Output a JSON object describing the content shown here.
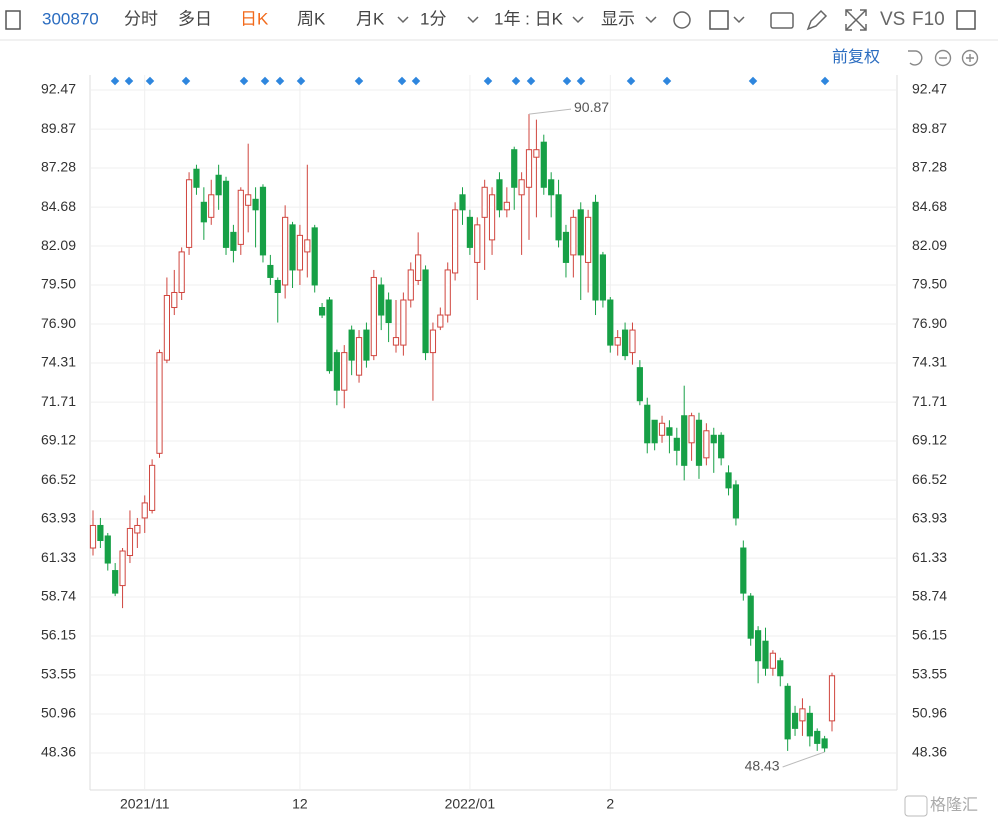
{
  "toolbar": {
    "code": "300870",
    "tabs": [
      "分时",
      "多日",
      "日K",
      "周K",
      "月K",
      "1分",
      "1年 : 日K",
      "显示"
    ],
    "active_tab": "日K",
    "tools": [
      "VS",
      "F10"
    ],
    "adjust": "前复权"
  },
  "watermark": "格隆汇",
  "chart_data": {
    "type": "candlestick",
    "categories": [
      null,
      null,
      null,
      null,
      null,
      null,
      null,
      "2021/11",
      null,
      null,
      null,
      null,
      null,
      null,
      null,
      null,
      null,
      null,
      null,
      null,
      null,
      null,
      null,
      null,
      null,
      null,
      null,
      null,
      "12",
      null,
      null,
      null,
      null,
      null,
      null,
      null,
      null,
      null,
      null,
      null,
      null,
      null,
      null,
      null,
      null,
      null,
      null,
      null,
      null,
      null,
      null,
      "2022/01",
      null,
      null,
      null,
      null,
      null,
      null,
      null,
      null,
      null,
      null,
      null,
      null,
      null,
      null,
      null,
      null,
      null,
      null,
      "2",
      null,
      null,
      null,
      null,
      null,
      null,
      null,
      null,
      null,
      null,
      null,
      null,
      null,
      null,
      null,
      null,
      null,
      null,
      null,
      null,
      null,
      null,
      null,
      null,
      null,
      null,
      null,
      null,
      null,
      null
    ],
    "open": [
      62,
      63.5,
      62.8,
      60.5,
      59.5,
      61.5,
      63,
      64,
      64.5,
      68.3,
      74.5,
      78,
      79,
      82,
      87.2,
      85,
      84,
      86.8,
      86.4,
      83,
      82.2,
      84.8,
      85.2,
      86,
      80.8,
      79.8,
      79.5,
      83.5,
      80.5,
      81.7,
      83.3,
      78,
      78.5,
      75,
      72.5,
      76.5,
      73.5,
      76.5,
      74.8,
      79.5,
      78.5,
      75.5,
      75.5,
      78.5,
      79.8,
      80.5,
      75,
      76.7,
      77.5,
      80.3,
      85.5,
      84,
      81,
      84,
      82.5,
      86.5,
      84.5,
      88.5,
      85.5,
      86,
      88,
      89,
      86.5,
      85.5,
      83,
      81.5,
      84.5,
      81,
      85,
      81.5,
      78.5,
      75.5,
      76.5,
      75,
      74,
      71.5,
      70.5,
      69.5,
      70,
      69.3,
      70.8,
      69,
      70.5,
      68,
      69.5,
      69.5,
      67,
      66.2,
      62,
      58.8,
      56.5,
      55.8,
      54,
      54.5,
      52.8,
      51,
      50.5,
      51,
      49.8,
      49.3,
      50.5
    ],
    "close": [
      63.5,
      62.5,
      61,
      59,
      61.8,
      63.3,
      63.5,
      65,
      67.5,
      75,
      78.8,
      79,
      81.7,
      86.5,
      86,
      83.7,
      85.5,
      85.5,
      82,
      81.8,
      85.8,
      85.5,
      84.5,
      81.5,
      80,
      79,
      84,
      80.5,
      82.8,
      82.5,
      79.5,
      77.5,
      73.8,
      72.5,
      75,
      74.5,
      76,
      74.5,
      80,
      77.5,
      77,
      76,
      78.5,
      80.5,
      81.5,
      75,
      76.5,
      77.5,
      80.5,
      84.5,
      84.5,
      82,
      83.5,
      86,
      85.5,
      84.5,
      85,
      86,
      86.5,
      88.5,
      88.5,
      86,
      85.5,
      82.5,
      81,
      84,
      81.5,
      84,
      78.5,
      78.5,
      75.5,
      76,
      74.8,
      76.5,
      71.8,
      69,
      69,
      70.3,
      69.5,
      68.5,
      67.5,
      70.8,
      67.5,
      69.8,
      69,
      68,
      66,
      64,
      59,
      56,
      54.5,
      54,
      55,
      53.5,
      49.3,
      50,
      51.3,
      49.5,
      49,
      48.7,
      53.5
    ],
    "high": [
      64.5,
      64,
      63,
      61,
      62,
      64.5,
      64,
      65.5,
      67.9,
      75.2,
      80,
      80.5,
      82,
      87,
      87.5,
      86,
      86.5,
      87.5,
      86.7,
      83.5,
      86,
      88.9,
      86,
      86.2,
      81.5,
      80,
      84.8,
      83.7,
      83.5,
      87.5,
      83.5,
      78.3,
      78.7,
      75.2,
      75.5,
      76.8,
      76.5,
      77,
      80.5,
      80,
      79,
      78.5,
      79,
      81,
      83,
      80.8,
      77,
      78,
      81,
      85,
      86,
      84.5,
      84,
      86.5,
      86,
      87,
      86,
      88.7,
      87,
      90.87,
      90.5,
      89.5,
      87,
      86.5,
      83.5,
      84.5,
      85,
      84.5,
      85.5,
      81.7,
      78.7,
      76.5,
      77,
      77,
      74.5,
      72,
      70.5,
      70.8,
      70.5,
      70,
      72.8,
      71,
      71,
      70.3,
      70,
      69.7,
      67.5,
      66.5,
      62.5,
      59,
      56.8,
      56.7,
      55.2,
      54.7,
      53,
      51.5,
      52,
      51.5,
      50,
      49.5,
      53.7
    ],
    "low": [
      61.5,
      62,
      60.5,
      58.8,
      58,
      61,
      62,
      63,
      64.3,
      68,
      74.3,
      77.5,
      78.5,
      81.5,
      85.5,
      82.5,
      83.5,
      84.5,
      81.5,
      81,
      81.5,
      83,
      82,
      81,
      79.5,
      77,
      78.6,
      79.3,
      79.5,
      80,
      79,
      77.3,
      73.6,
      71.5,
      71.3,
      73.5,
      73,
      74,
      74.5,
      76.5,
      75.7,
      75,
      74.8,
      78,
      79.5,
      74.5,
      71.8,
      76.5,
      77,
      79.8,
      83.5,
      81.5,
      78.5,
      80.5,
      81.5,
      84,
      84,
      84.5,
      81.5,
      82.5,
      84,
      85.5,
      84,
      82,
      80,
      80,
      78.5,
      79,
      77.5,
      78,
      75,
      74.8,
      74.5,
      74.2,
      71.5,
      68.3,
      68.5,
      69,
      68.3,
      67.5,
      66.5,
      67.8,
      66.6,
      67.5,
      67,
      67.5,
      65.5,
      63.5,
      58.5,
      55.5,
      53,
      53.5,
      53.5,
      52.8,
      48.5,
      49.5,
      49.5,
      48.8,
      48.5,
      48.43,
      49.8
    ],
    "max_label": "90.87",
    "min_label": "48.43",
    "up_color": "#d0453e",
    "down_color": "#17a046",
    "ylim": [
      45.9,
      93.47
    ],
    "yticks": [
      92.47,
      89.87,
      87.28,
      84.68,
      82.09,
      {
        "value": 79.5,
        "label": "79.50"
      },
      {
        "value": 76.9,
        "label": "76.90"
      },
      74.31,
      71.71,
      69.12,
      66.52,
      63.93,
      61.33,
      58.74,
      56.15,
      53.55,
      50.96,
      48.36
    ],
    "grid": true
  }
}
